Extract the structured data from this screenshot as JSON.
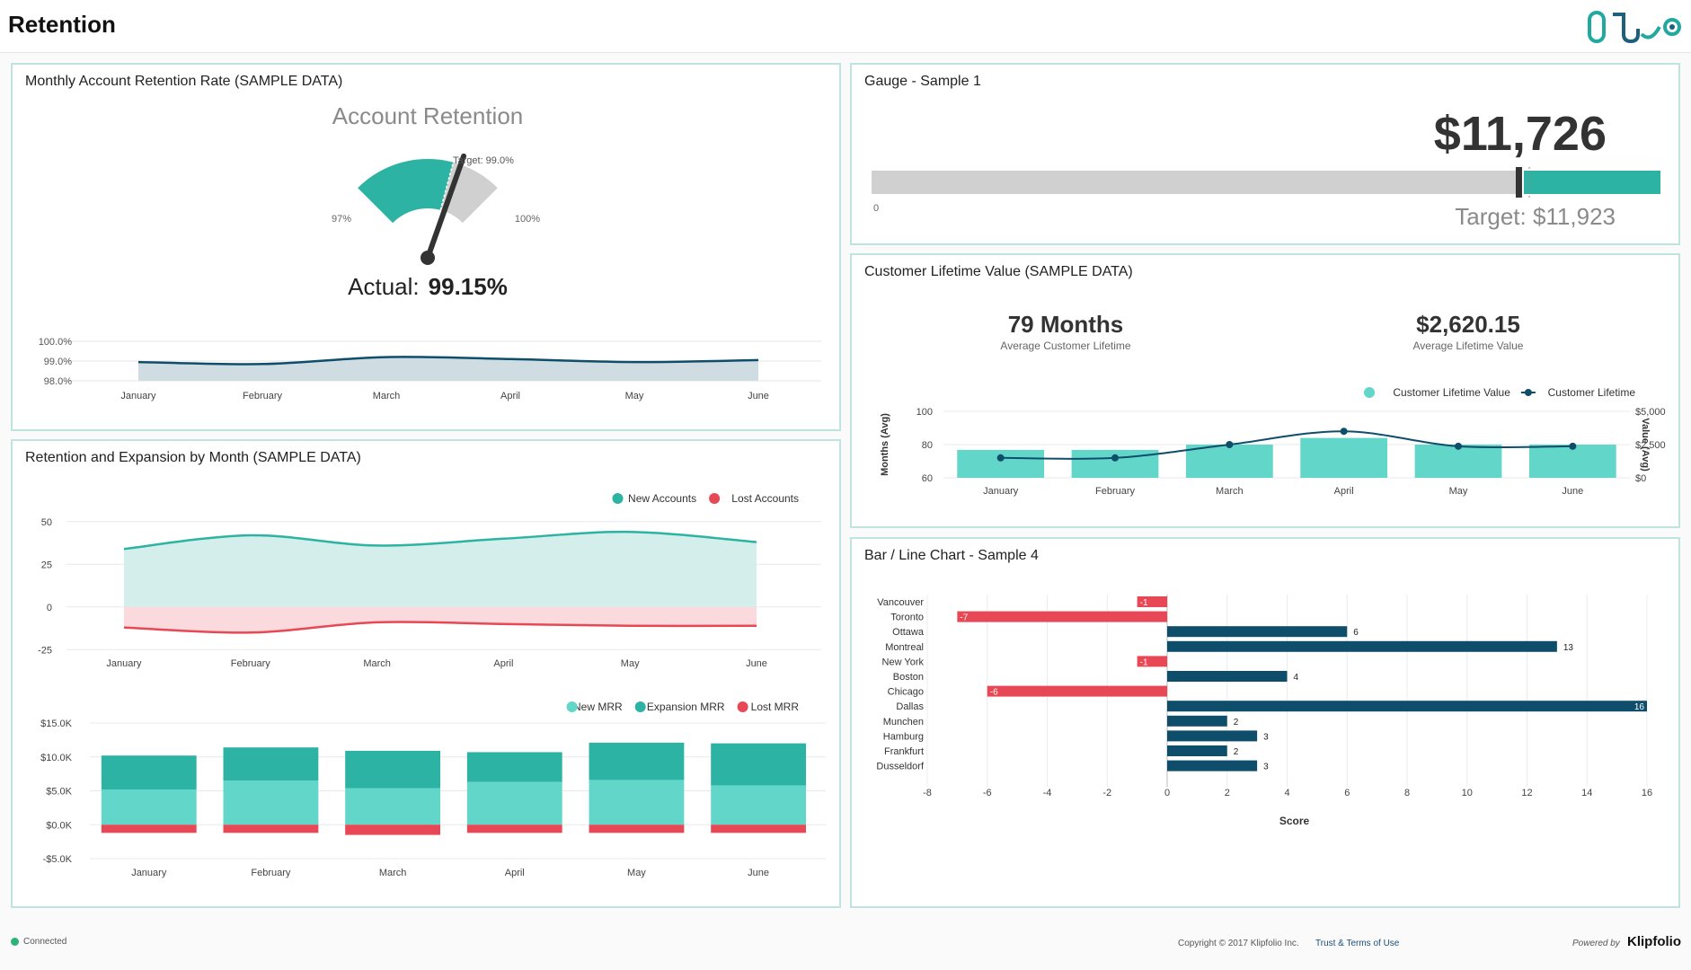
{
  "header": {
    "title": "Retention"
  },
  "panels": {
    "retention_rate": {
      "title": "Monthly Account Retention Rate (SAMPLE DATA)",
      "gauge_title": "Account Retention",
      "target_label": "Target: 99.0%",
      "min_label": "97%",
      "max_label": "100%",
      "actual_label": "Actual:",
      "actual_value": "99.15%"
    },
    "gauge1": {
      "title": "Gauge - Sample 1",
      "value": "$11,726",
      "target": "Target: $11,923",
      "zero": "0"
    },
    "clv": {
      "title": "Customer Lifetime Value (SAMPLE DATA)",
      "kpi1_value": "79 Months",
      "kpi1_label": "Average Customer Lifetime",
      "kpi2_value": "$2,620.15",
      "kpi2_label": "Average Lifetime Value"
    },
    "expansion": {
      "title": "Retention and Expansion by Month (SAMPLE DATA)"
    },
    "barline": {
      "title": "Bar / Line Chart - Sample 4"
    }
  },
  "footer": {
    "status": "Connected",
    "copyright": "Copyright © 2017 Klipfolio Inc.",
    "terms": "Trust & Terms of Use",
    "powered": "Powered by",
    "brand": "Klipfolio"
  },
  "colors": {
    "teal": "#2db3a3",
    "light_teal": "#62d7c9",
    "navy": "#0f4e6b",
    "red": "#e84855",
    "gray": "#d0d0d0"
  },
  "chart_data": [
    {
      "type": "gauge",
      "title": "Account Retention",
      "min": 97,
      "max": 100,
      "target": 99.0,
      "value": 99.15
    },
    {
      "type": "area",
      "categories": [
        "January",
        "February",
        "March",
        "April",
        "May",
        "June"
      ],
      "values": [
        98.95,
        98.85,
        99.2,
        99.1,
        98.95,
        99.05
      ],
      "ylim": [
        98,
        100
      ],
      "ytick_labels": [
        "100.0%",
        "99.0%",
        "98.0%"
      ],
      "ytick_values": [
        100,
        99,
        98
      ]
    },
    {
      "type": "bullet",
      "title": "Gauge - Sample 1",
      "value": 11726,
      "target": 11923,
      "min": 0,
      "max": 14300
    },
    {
      "type": "bar",
      "title": "Customer Lifetime Value (SAMPLE DATA)",
      "categories": [
        "January",
        "February",
        "March",
        "April",
        "May",
        "June"
      ],
      "legend": [
        "Customer Lifetime Value",
        "Customer Lifetime"
      ],
      "series": [
        {
          "name": "Customer Lifetime Value",
          "kind": "bar",
          "axis": "right",
          "values": [
            2100,
            2100,
            2500,
            3000,
            2500,
            2500
          ]
        },
        {
          "name": "Customer Lifetime",
          "kind": "line",
          "axis": "left",
          "values": [
            72,
            72,
            80,
            88,
            79,
            79
          ]
        }
      ],
      "ylim_left": [
        60,
        100
      ],
      "yticks_left": [
        60,
        80,
        100
      ],
      "ylabel_left": "Months (Avg)",
      "ylim_right": [
        0,
        5000
      ],
      "yticks_right": [
        {
          "v": 0,
          "label": "$0"
        },
        {
          "v": 2500,
          "label": "$2,500"
        },
        {
          "v": 5000,
          "label": "$5,000"
        }
      ],
      "ylabel_right": "Value (Avg)"
    },
    {
      "type": "area",
      "categories": [
        "January",
        "February",
        "March",
        "April",
        "May",
        "June"
      ],
      "legend": [
        "New Accounts",
        "Lost Accounts"
      ],
      "series": [
        {
          "name": "New Accounts",
          "values": [
            34,
            42,
            36,
            40,
            44,
            38
          ]
        },
        {
          "name": "Lost Accounts",
          "values": [
            -12,
            -15,
            -9,
            -10,
            -11,
            -11
          ]
        }
      ],
      "ylim": [
        -28,
        52
      ],
      "yticks": [
        50,
        25,
        0,
        -25
      ]
    },
    {
      "type": "bar",
      "stacked": true,
      "categories": [
        "January",
        "February",
        "March",
        "April",
        "May",
        "June"
      ],
      "legend": [
        "New MRR",
        "Expansion MRR",
        "Lost MRR"
      ],
      "series": [
        {
          "name": "New MRR",
          "values": [
            5200,
            6500,
            5400,
            6300,
            6600,
            5800
          ]
        },
        {
          "name": "Expansion MRR",
          "values": [
            5000,
            4900,
            5500,
            4400,
            5500,
            6200
          ]
        },
        {
          "name": "Lost MRR",
          "values": [
            -1200,
            -1200,
            -1500,
            -1200,
            -1200,
            -1200
          ]
        }
      ],
      "ylim": [
        -5000,
        15000
      ],
      "yticks": [
        {
          "v": 15000,
          "label": "$15.0K"
        },
        {
          "v": 10000,
          "label": "$10.0K"
        },
        {
          "v": 5000,
          "label": "$5.0K"
        },
        {
          "v": 0,
          "label": "$0.0K"
        },
        {
          "v": -5000,
          "label": "-$5.0K"
        }
      ]
    },
    {
      "type": "bar",
      "orientation": "horizontal",
      "title": "Bar / Line Chart - Sample 4",
      "xlabel": "Score",
      "categories": [
        "Vancouver",
        "Toronto",
        "Ottawa",
        "Montreal",
        "New York",
        "Boston",
        "Chicago",
        "Dallas",
        "Munchen",
        "Hamburg",
        "Frankfurt",
        "Dusseldorf"
      ],
      "values": [
        -1,
        -7,
        6,
        13,
        -1,
        4,
        -6,
        16,
        2,
        3,
        2,
        3
      ],
      "xlim": [
        -8,
        16
      ],
      "xticks": [
        -8,
        -6,
        -4,
        -2,
        0,
        2,
        4,
        6,
        8,
        10,
        12,
        14,
        16
      ]
    }
  ]
}
